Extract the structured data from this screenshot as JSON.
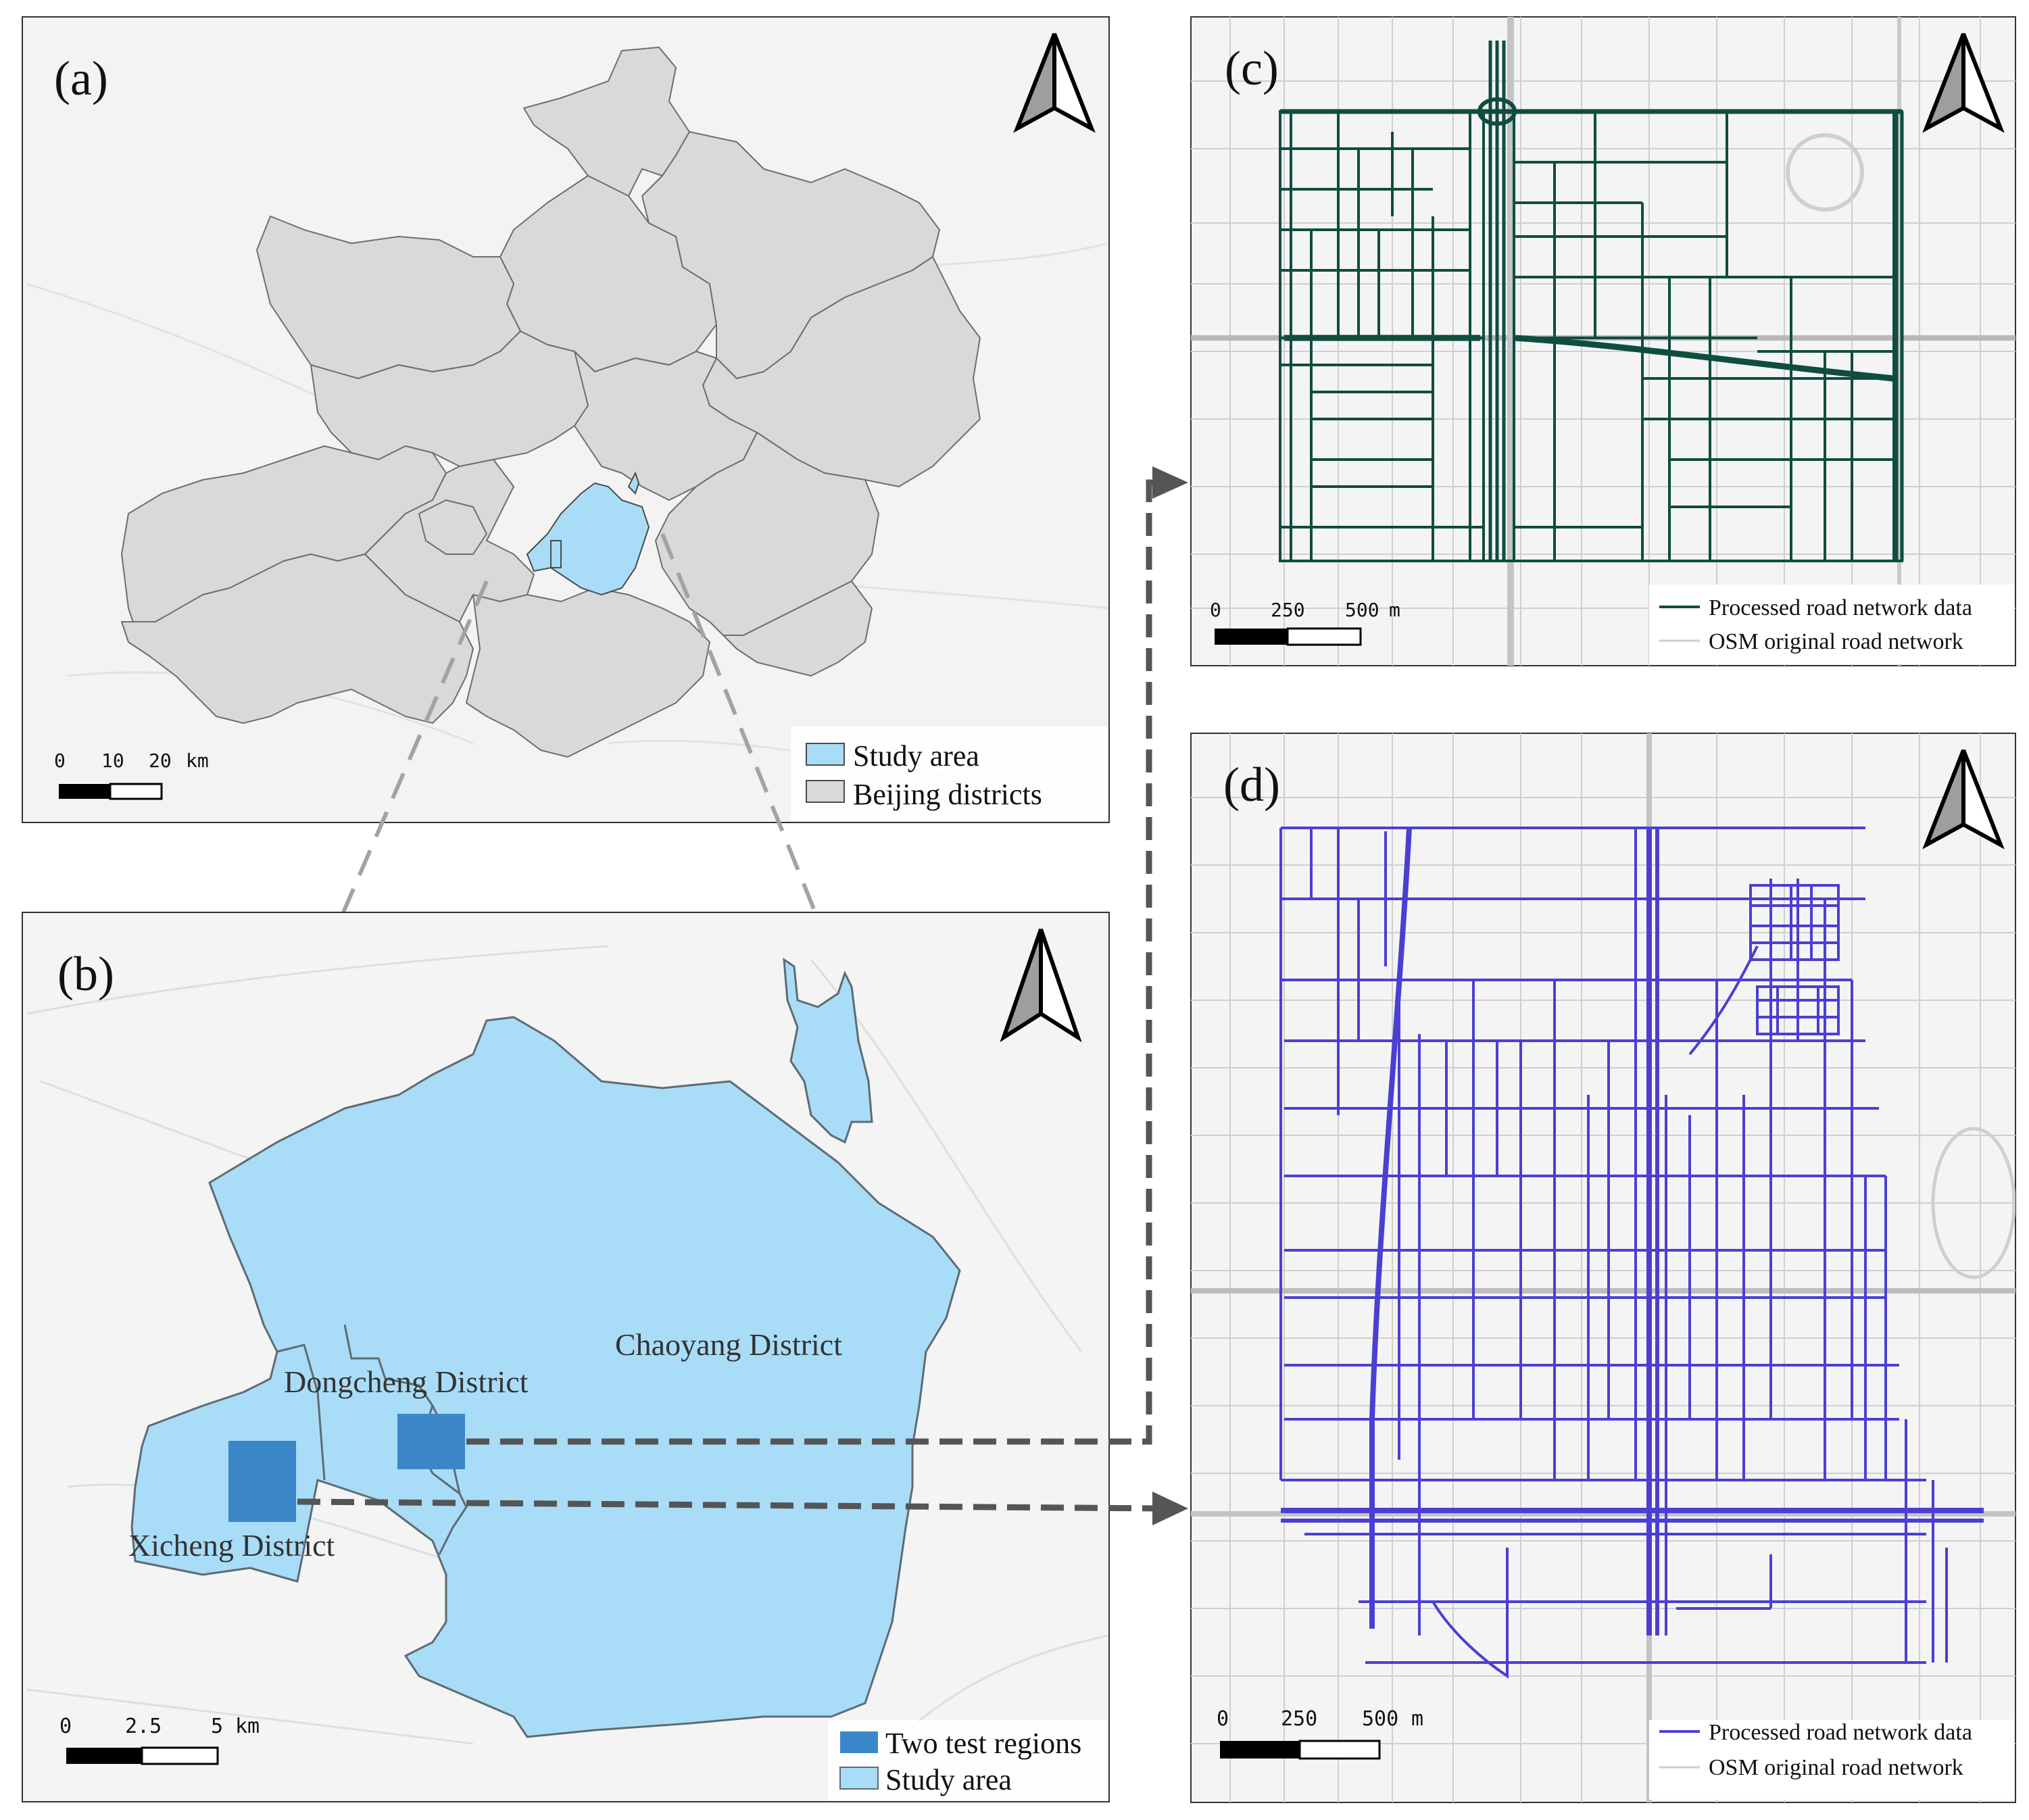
{
  "panel_a": {
    "label": "(a)",
    "scale": {
      "ticks": [
        "0",
        "10",
        "20"
      ],
      "unit": "km"
    },
    "legend": [
      {
        "label": "Study area",
        "color": "#a9dcf7"
      },
      {
        "label": "Beijing districts",
        "color": "#d9d9d9"
      }
    ],
    "north_arrow": "north-arrow-icon"
  },
  "panel_b": {
    "label": "(b)",
    "districts": {
      "chaoyang": "Chaoyang District",
      "dongcheng": "Dongcheng District",
      "xicheng": "Xicheng District"
    },
    "scale": {
      "ticks": [
        "0",
        "2.5",
        "5"
      ],
      "unit": "km"
    },
    "legend": [
      {
        "label": "Two test regions",
        "color": "#3a86c8"
      },
      {
        "label": "Study area",
        "color": "#a9dcf7"
      }
    ],
    "north_arrow": "north-arrow-icon"
  },
  "panel_c": {
    "label": "(c)",
    "scale": {
      "ticks": [
        "0",
        "250",
        "500"
      ],
      "unit": "m"
    },
    "legend": [
      {
        "label": "Processed road network data",
        "color": "#0f4d3f"
      },
      {
        "label": "OSM original road network",
        "color": "#cfcfcf"
      }
    ],
    "north_arrow": "north-arrow-icon"
  },
  "panel_d": {
    "label": "(d)",
    "scale": {
      "ticks": [
        "0",
        "250",
        "500"
      ],
      "unit": "m"
    },
    "legend": [
      {
        "label": "Processed road network data",
        "color": "#4b3fd3"
      },
      {
        "label": "OSM original road network",
        "color": "#cfcfcf"
      }
    ],
    "north_arrow": "north-arrow-icon"
  },
  "colors": {
    "study_area": "#a9dcf7",
    "district_fill": "#d9d9d9",
    "test_region": "#3a86c8",
    "road_green": "#0f4d3f",
    "road_purple": "#4b3fd3",
    "connector": "#555555",
    "zoom_lines": "#a9a1a1"
  }
}
